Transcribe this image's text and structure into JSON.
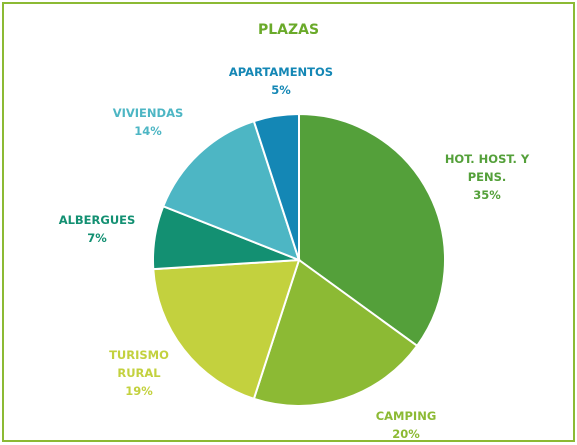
{
  "chart_data": {
    "type": "pie",
    "title": "PLAZAS",
    "categories": [
      "HOT. HOST. Y PENS.",
      "CAMPING",
      "TURISMO RURAL",
      "ALBERGUES",
      "VIVIENDAS",
      "APARTAMENTOS"
    ],
    "values": [
      35,
      20,
      19,
      7,
      14,
      5
    ],
    "value_labels": [
      "35%",
      "20%",
      "19%",
      "7%",
      "14%",
      "5%"
    ],
    "colors": [
      "#54a03a",
      "#8cba34",
      "#c3d13e",
      "#139072",
      "#4db6c4",
      "#1487b5"
    ]
  }
}
